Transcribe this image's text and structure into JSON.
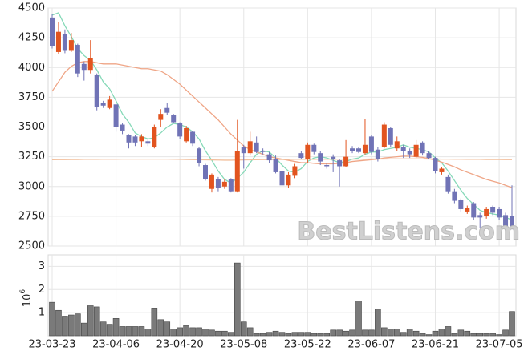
{
  "chart_data": [
    {
      "type": "candlestick",
      "watermark": "BestListens.com",
      "up_color": "#e2541f",
      "down_color": "#7073b6",
      "ylim": [
        2500,
        4500
      ],
      "yticks": [
        2500,
        2750,
        3000,
        3250,
        3500,
        3750,
        4000,
        4250,
        4500
      ],
      "grid": true,
      "open": [
        4420,
        4130,
        4280,
        4140,
        4190,
        4030,
        3980,
        3940,
        3700,
        3660,
        3690,
        3520,
        3430,
        3420,
        3380,
        3380,
        3330,
        3560,
        3660,
        3600,
        3530,
        3380,
        3460,
        3320,
        3180,
        2980,
        3060,
        3000,
        3060,
        2960,
        3330,
        3280,
        3370,
        3300,
        3270,
        3230,
        3130,
        3010,
        3090,
        3280,
        3230,
        3350,
        3280,
        3180,
        3250,
        3220,
        3170,
        3320,
        3320,
        3280,
        3420,
        3310,
        3330,
        3490,
        3320,
        3330,
        3300,
        3250,
        3370,
        3280,
        3240,
        3120,
        3080,
        2960,
        2890,
        2790,
        2860,
        2760,
        2750,
        2830,
        2810,
        2760,
        2750
      ],
      "high": [
        4450,
        4380,
        4320,
        4290,
        4200,
        4050,
        4230,
        3950,
        3720,
        3760,
        3700,
        3530,
        3440,
        3430,
        3440,
        3400,
        3520,
        3650,
        3700,
        3610,
        3540,
        3510,
        3470,
        3330,
        3190,
        3110,
        3080,
        3060,
        3070,
        3560,
        3350,
        3460,
        3420,
        3320,
        3290,
        3260,
        3150,
        3120,
        3190,
        3300,
        3370,
        3360,
        3300,
        3200,
        3270,
        3230,
        3390,
        3340,
        3330,
        3570,
        3430,
        3330,
        3540,
        3500,
        3420,
        3350,
        3320,
        3390,
        3380,
        3300,
        3250,
        3160,
        3100,
        2980,
        2900,
        2840,
        2870,
        2780,
        2830,
        2840,
        2830,
        2780,
        3010
      ],
      "low": [
        4160,
        4110,
        4120,
        4130,
        3920,
        3890,
        3950,
        3640,
        3660,
        3650,
        3460,
        3440,
        3320,
        3340,
        3330,
        3340,
        3320,
        3500,
        3600,
        3530,
        3400,
        3370,
        3340,
        3170,
        3050,
        2950,
        2960,
        2980,
        2950,
        2950,
        3150,
        3260,
        3280,
        3270,
        3200,
        3110,
        3000,
        2990,
        3070,
        3230,
        3200,
        3270,
        3180,
        3150,
        3120,
        3000,
        3160,
        3280,
        3280,
        3270,
        3270,
        3210,
        3320,
        3330,
        3300,
        3240,
        3240,
        3240,
        3260,
        3230,
        3110,
        3100,
        2940,
        2860,
        2790,
        2770,
        2720,
        2650,
        2730,
        2760,
        2720,
        2640,
        2640
      ],
      "close": [
        4180,
        4300,
        4140,
        4230,
        3950,
        3980,
        4080,
        3670,
        3680,
        3730,
        3500,
        3470,
        3370,
        3370,
        3420,
        3360,
        3500,
        3610,
        3620,
        3540,
        3420,
        3490,
        3360,
        3200,
        3060,
        3100,
        2990,
        3040,
        2960,
        3300,
        3280,
        3380,
        3290,
        3290,
        3220,
        3120,
        3010,
        3100,
        3170,
        3240,
        3350,
        3290,
        3210,
        3170,
        3230,
        3170,
        3250,
        3300,
        3290,
        3350,
        3290,
        3230,
        3520,
        3350,
        3380,
        3300,
        3270,
        3350,
        3280,
        3240,
        3130,
        3150,
        2960,
        2880,
        2810,
        2820,
        2740,
        2740,
        2810,
        2780,
        2740,
        2660,
        2650
      ],
      "series": [
        {
          "color": "#86d9b8",
          "values": [
            4440,
            4460,
            4350,
            4260,
            4160,
            4100,
            4060,
            3980,
            3880,
            3820,
            3720,
            3610,
            3540,
            3450,
            3420,
            3400,
            3410,
            3450,
            3500,
            3530,
            3520,
            3500,
            3460,
            3400,
            3300,
            3220,
            3130,
            3060,
            3030,
            3070,
            3120,
            3200,
            3270,
            3300,
            3290,
            3240,
            3180,
            3130,
            3120,
            3150,
            3210,
            3240,
            3250,
            3240,
            3220,
            3200,
            3210,
            3230,
            3240,
            3270,
            3290,
            3290,
            3310,
            3320,
            3330,
            3350,
            3330,
            3320,
            3310,
            3290,
            3240,
            3200,
            3130,
            3050,
            2970,
            2900,
            2850,
            2800,
            2780,
            2770,
            2760,
            2740,
            2720
          ]
        },
        {
          "color": "#efa586",
          "values": [
            3800,
            3880,
            3960,
            4010,
            4040,
            4050,
            4050,
            4040,
            4030,
            4030,
            4030,
            4020,
            4010,
            4000,
            3990,
            3990,
            3980,
            3970,
            3940,
            3900,
            3860,
            3810,
            3760,
            3710,
            3660,
            3610,
            3560,
            3500,
            3440,
            3390,
            3340,
            3310,
            3290,
            3270,
            3250,
            3240,
            3230,
            3220,
            3210,
            3200,
            3200,
            3195,
            3190,
            3190,
            3190,
            3195,
            3200,
            3210,
            3215,
            3220,
            3225,
            3230,
            3240,
            3245,
            3250,
            3255,
            3255,
            3250,
            3245,
            3235,
            3220,
            3205,
            3185,
            3165,
            3140,
            3120,
            3100,
            3080,
            3060,
            3045,
            3030,
            3010,
            2990
          ]
        },
        {
          "color": "#f2bf9c",
          "values": [
            3225,
            3226,
            3226,
            3227,
            3227,
            3228,
            3228,
            3228,
            3229,
            3229,
            3229,
            3230,
            3230,
            3230,
            3230,
            3230,
            3230,
            3230,
            3230,
            3229,
            3228,
            3227,
            3226,
            3225,
            3224,
            3223,
            3222,
            3221,
            3221,
            3222,
            3223,
            3224,
            3225,
            3226,
            3226,
            3227,
            3227,
            3227,
            3228,
            3228,
            3228,
            3228,
            3229,
            3229,
            3229,
            3229,
            3230,
            3230,
            3230,
            3230,
            3231,
            3231,
            3231,
            3232,
            3232,
            3232,
            3232,
            3232,
            3232,
            3231,
            3231,
            3230,
            3230,
            3229,
            3229,
            3228,
            3228,
            3228,
            3227,
            3227,
            3227,
            3226,
            3226
          ]
        }
      ]
    },
    {
      "type": "bar",
      "color": "#7a7a7a",
      "y_offset_label": {
        "base": "10",
        "exponent": "6"
      },
      "ylim": [
        0,
        3.5
      ],
      "yticks": [
        1,
        2,
        3
      ],
      "grid": true,
      "categories": [
        "23-03-23",
        null,
        null,
        null,
        null,
        null,
        null,
        null,
        null,
        null,
        "23-04-06",
        null,
        null,
        null,
        null,
        null,
        null,
        null,
        null,
        null,
        "23-04-20",
        null,
        null,
        null,
        null,
        null,
        null,
        null,
        null,
        null,
        "23-05-08",
        null,
        null,
        null,
        null,
        null,
        null,
        null,
        null,
        null,
        "23-05-22",
        null,
        null,
        null,
        null,
        null,
        null,
        null,
        null,
        null,
        "23-06-07",
        null,
        null,
        null,
        null,
        null,
        null,
        null,
        null,
        null,
        "23-06-21",
        null,
        null,
        null,
        null,
        null,
        null,
        null,
        null,
        null,
        "23-07-05",
        null,
        null
      ],
      "values": [
        1.45,
        1.1,
        0.85,
        0.9,
        0.95,
        0.55,
        1.3,
        1.25,
        0.6,
        0.5,
        0.75,
        0.4,
        0.4,
        0.4,
        0.4,
        0.3,
        1.2,
        0.7,
        0.6,
        0.3,
        0.35,
        0.45,
        0.35,
        0.35,
        0.3,
        0.25,
        0.2,
        0.2,
        0.15,
        3.15,
        0.6,
        0.35,
        0.1,
        0.1,
        0.15,
        0.2,
        0.15,
        0.1,
        0.15,
        0.15,
        0.15,
        0.1,
        0.1,
        0.1,
        0.25,
        0.25,
        0.2,
        0.25,
        1.5,
        0.25,
        0.25,
        1.15,
        0.35,
        0.3,
        0.3,
        0.15,
        0.3,
        0.2,
        0.1,
        0.05,
        0.2,
        0.3,
        0.4,
        0.1,
        0.25,
        0.2,
        0.1,
        0.1,
        0.1,
        0.1,
        0.05,
        0.25,
        1.05
      ]
    }
  ]
}
